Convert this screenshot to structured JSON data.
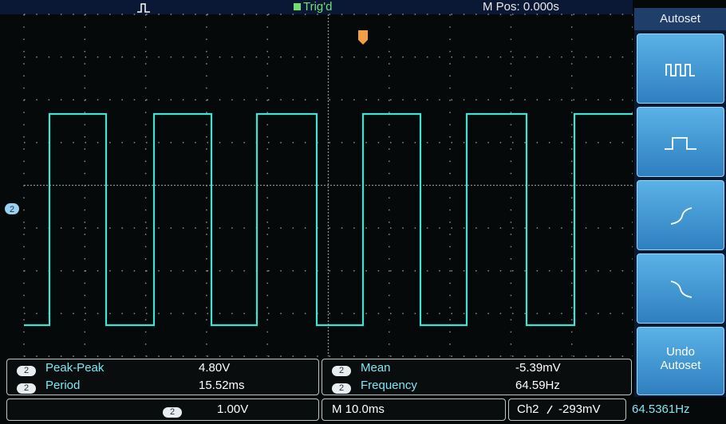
{
  "top_bar": {
    "trigger_status": "Trig'd",
    "position": "M Pos: 0.000s"
  },
  "side_menu": {
    "title": "Autoset",
    "undo_button": [
      "Undo",
      "Autoset"
    ]
  },
  "channel_marker": "2",
  "measurements": [
    {
      "channel": "2",
      "name": "Peak-Peak",
      "value": "4.80V"
    },
    {
      "channel": "2",
      "name": "Period",
      "value": "15.52ms"
    },
    {
      "channel": "2",
      "name": "Mean",
      "value": "-5.39mV"
    },
    {
      "channel": "2",
      "name": "Frequency",
      "value": "64.59Hz"
    }
  ],
  "status_bar": {
    "channel": "2",
    "volts_div": "1.00V",
    "time_div": "M 10.0ms",
    "trigger_source": "Ch2",
    "trigger_level": "-293mV",
    "trigger_frequency": "64.5361Hz"
  }
}
